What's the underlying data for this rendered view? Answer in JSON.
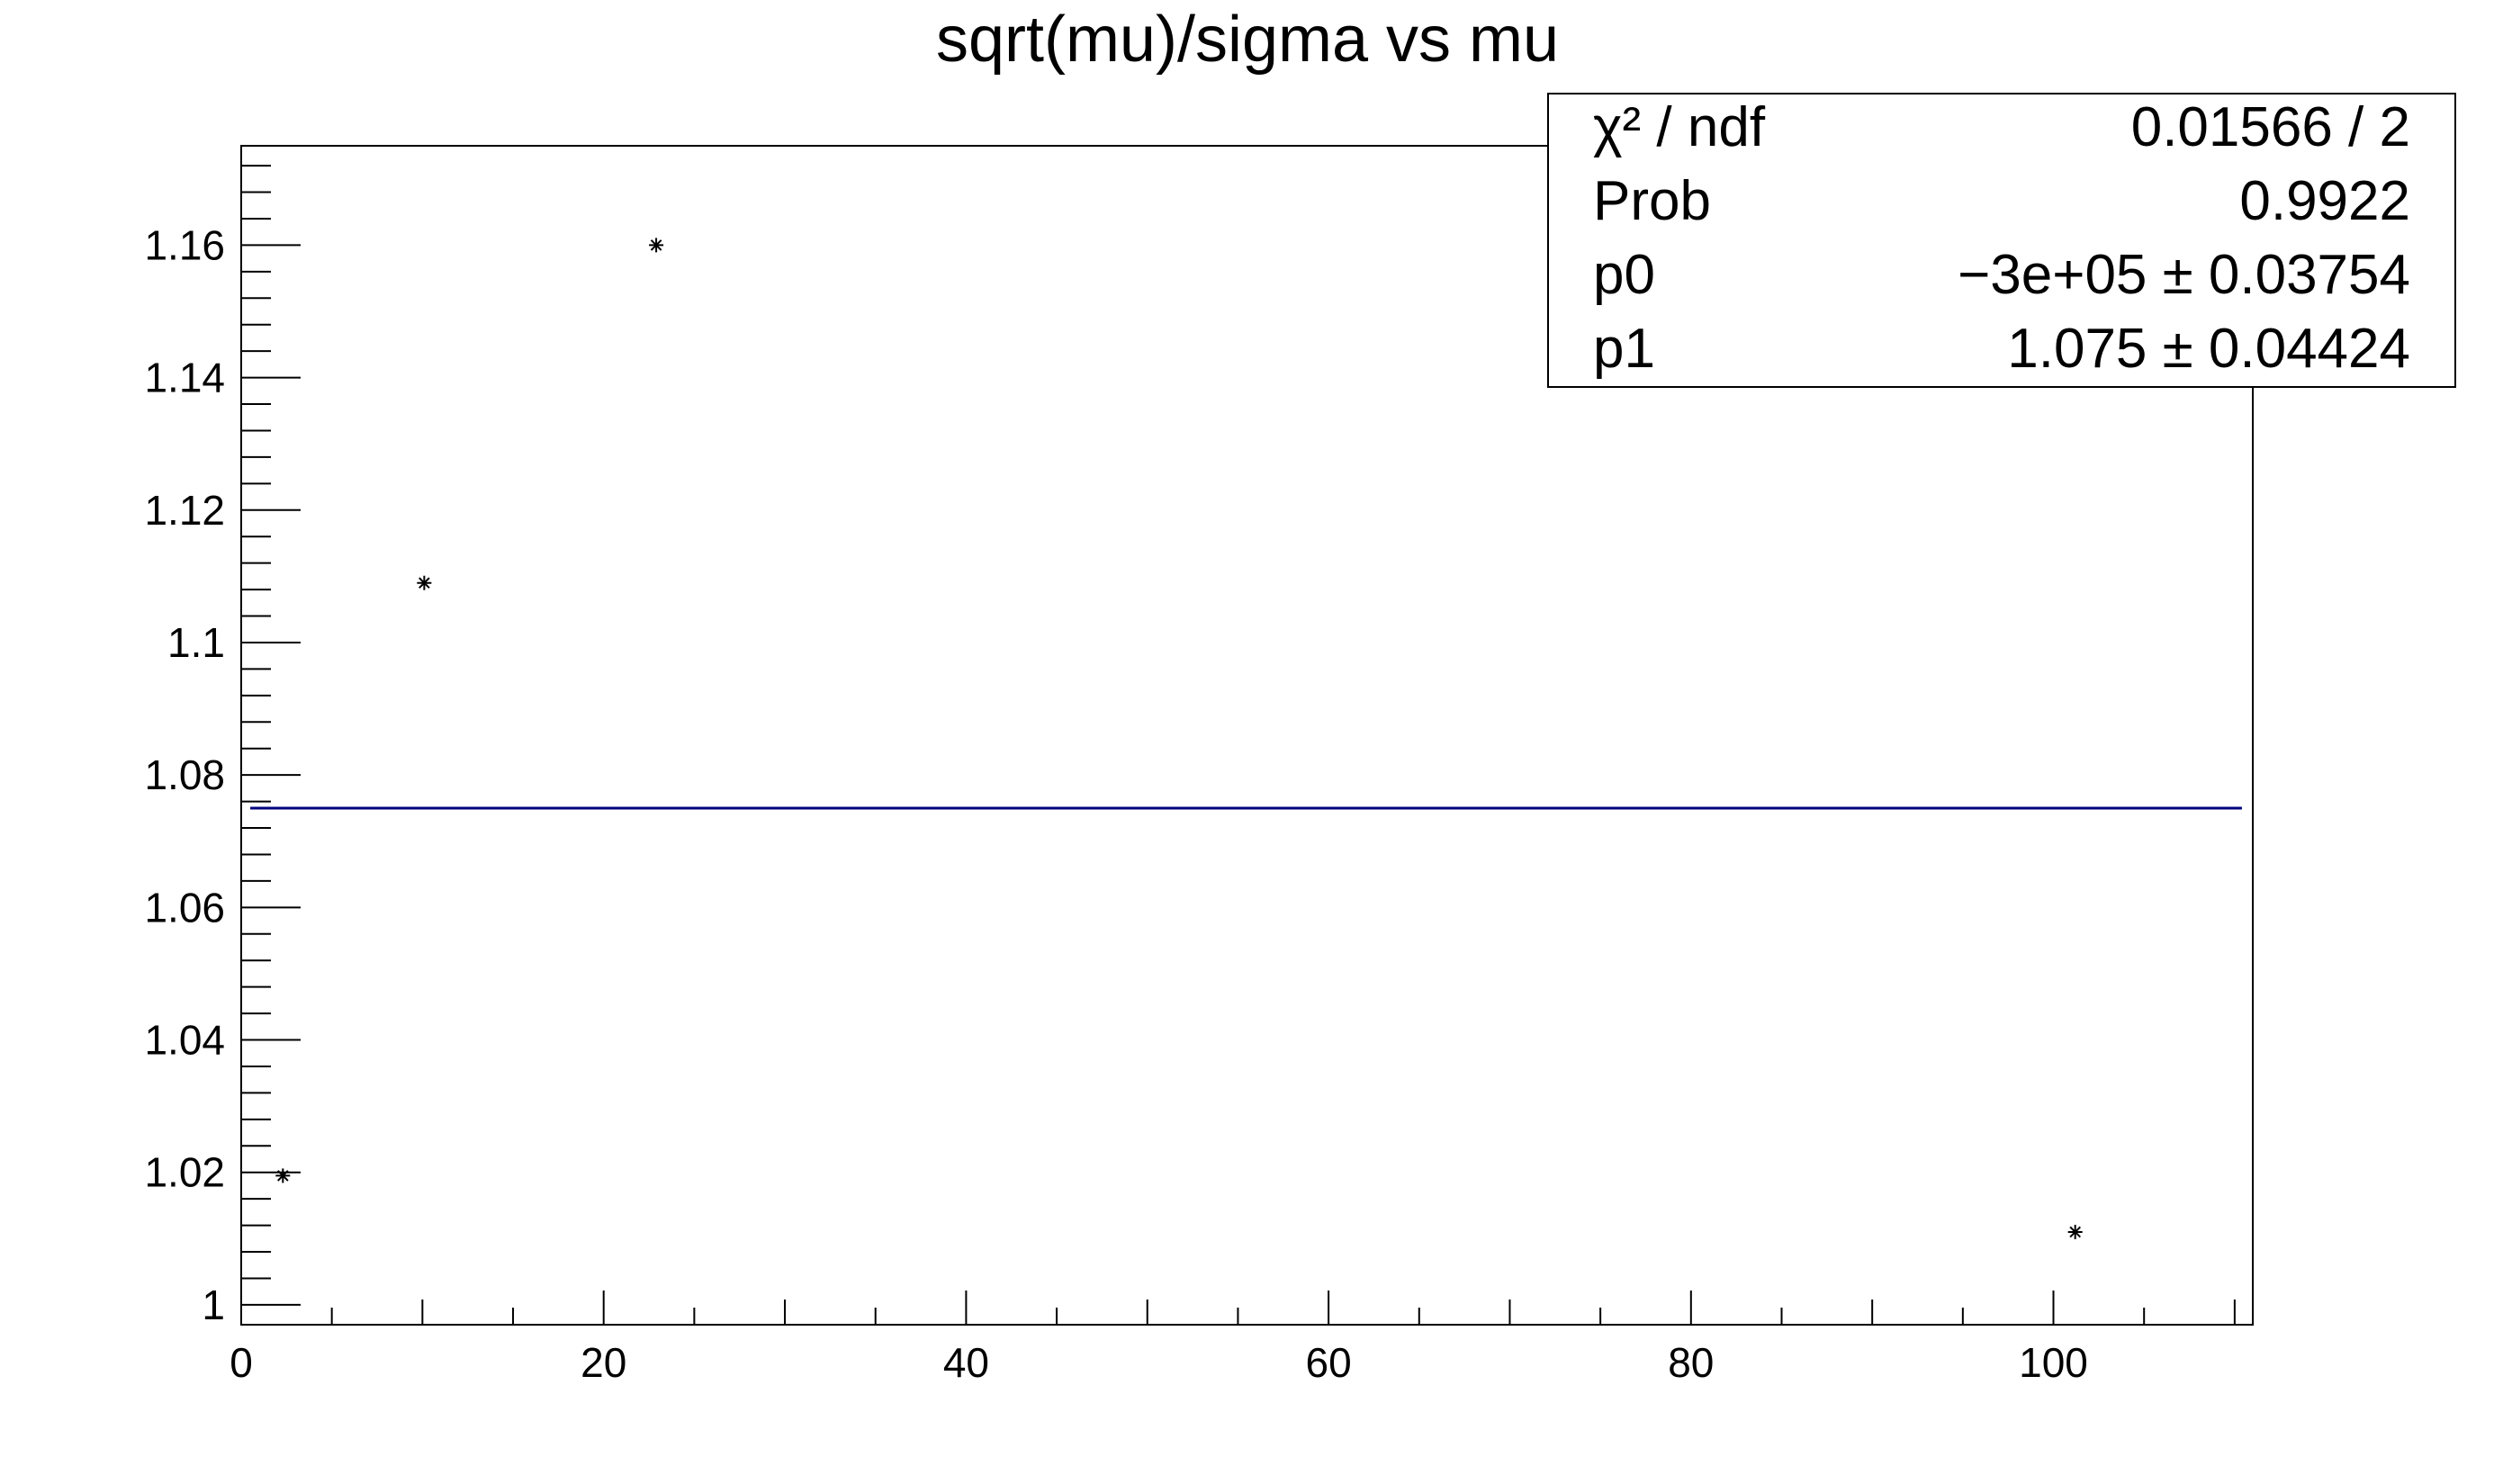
{
  "chart_data": {
    "type": "scatter",
    "title": "sqrt(mu)/sigma vs mu",
    "xlabel": "",
    "ylabel": "",
    "xlim": [
      0,
      111
    ],
    "ylim": [
      0.997,
      1.175
    ],
    "x_ticks": [
      0,
      20,
      40,
      60,
      80,
      100
    ],
    "y_ticks": [
      1,
      1.02,
      1.04,
      1.06,
      1.08,
      1.1,
      1.12,
      1.14,
      1.16
    ],
    "grid": false,
    "marker": "asterisk",
    "series": [
      {
        "points": [
          {
            "x": 2.3,
            "y": 1.0195
          },
          {
            "x": 10.1,
            "y": 1.109
          },
          {
            "x": 22.9,
            "y": 1.16
          },
          {
            "x": 101.2,
            "y": 1.011
          }
        ]
      }
    ],
    "fit_line": {
      "y": 1.075,
      "x_range": [
        0.5,
        110.4
      ],
      "color": "#00007f"
    },
    "stats_box": {
      "placement": "top-right",
      "rows": [
        {
          "label": "χ² / ndf",
          "value": "0.01566 / 2"
        },
        {
          "label": "Prob",
          "value": "0.9922"
        },
        {
          "label": "p0",
          "value": "−3e+05 ± 0.03754"
        },
        {
          "label": "p1",
          "value": "1.075 ± 0.04424"
        }
      ]
    }
  }
}
